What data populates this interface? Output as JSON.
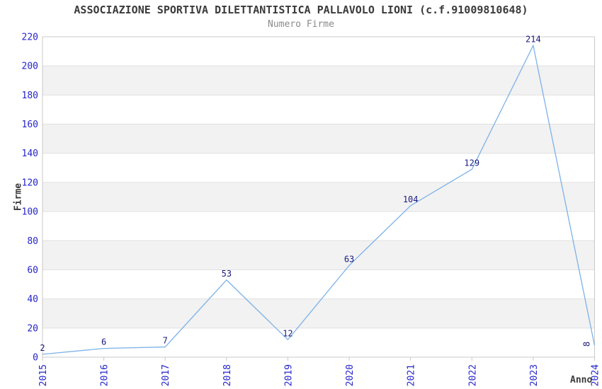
{
  "chart_data": {
    "type": "line",
    "title": "ASSOCIAZIONE SPORTIVA DILETTANTISTICA PALLAVOLO LIONI (c.f.91009810648)",
    "subtitle": "Numero Firme",
    "xlabel": "Anno",
    "ylabel": "Firme",
    "categories": [
      "2015",
      "2016",
      "2017",
      "2018",
      "2019",
      "2020",
      "2021",
      "2022",
      "2023",
      "2024"
    ],
    "values": [
      2,
      6,
      7,
      53,
      12,
      63,
      104,
      129,
      214,
      8
    ],
    "ylim": [
      0,
      220
    ],
    "ytick_step": 20,
    "grid": true,
    "legend": "none",
    "colors": {
      "line": "#7db2e8",
      "tick_label": "#2525cc",
      "data_label": "#1a1a80",
      "band": "#f2f2f2",
      "gridline": "#e0e0e0",
      "frame": "#c8c8c8",
      "title": "#3a3a3a",
      "subtitle": "#8a8a8a",
      "axis_title": "#3a3a3a"
    }
  }
}
